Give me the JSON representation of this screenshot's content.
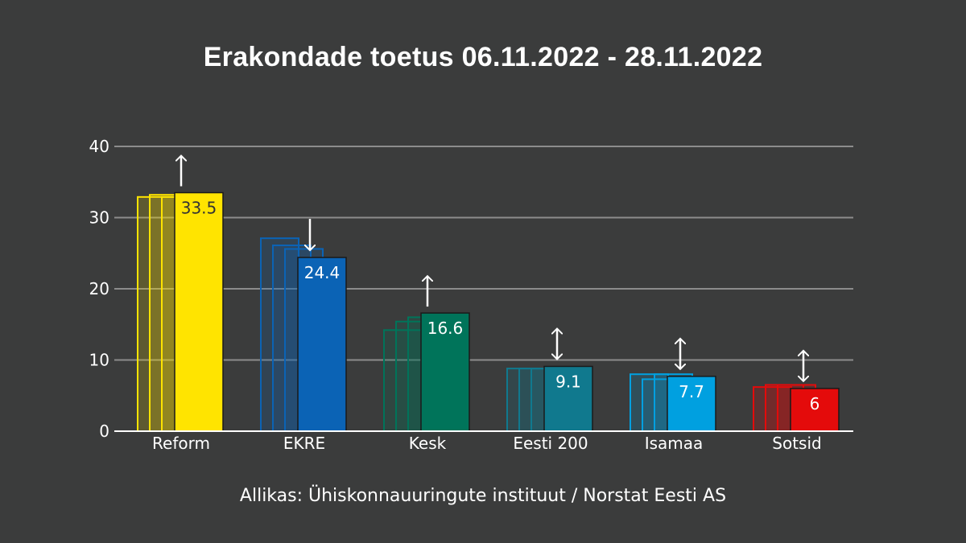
{
  "chart_data": {
    "type": "bar",
    "title": "Erakondade toetus 06.11.2022 - 28.11.2022",
    "categories": [
      "Reform",
      "EKRE",
      "Kesk",
      "Eesti 200",
      "Isamaa",
      "Sotsid"
    ],
    "values": [
      33.5,
      24.4,
      16.6,
      9.1,
      7.7,
      6
    ],
    "value_labels": [
      "33.5",
      "24.4",
      "16.6",
      "9.1",
      "7.7",
      "6"
    ],
    "previous_values": [
      [
        32.9,
        33.2,
        32.9
      ],
      [
        27.1,
        26.1,
        25.6
      ],
      [
        14.2,
        15.4,
        16.0
      ],
      [
        8.8,
        8.8,
        8.8
      ],
      [
        8.0,
        7.3,
        8.0
      ],
      [
        6.2,
        6.5,
        6.5
      ]
    ],
    "trend": [
      "up",
      "down",
      "up",
      "both",
      "both",
      "both"
    ],
    "colors": [
      "#ffe400",
      "#0b63b5",
      "#00745a",
      "#10798e",
      "#00a0e0",
      "#e40b0b"
    ],
    "label_colors": [
      "#333333",
      "#ffffff",
      "#ffffff",
      "#ffffff",
      "#ffffff",
      "#ffffff"
    ],
    "ylim": [
      0,
      40
    ],
    "yticks": [
      "0",
      "10",
      "20",
      "30",
      "40"
    ],
    "xlabel": "",
    "ylabel": "",
    "grid": true,
    "legend": "none"
  },
  "source": "Allikas: Ühiskonnauuringute instituut / Norstat Eesti AS"
}
